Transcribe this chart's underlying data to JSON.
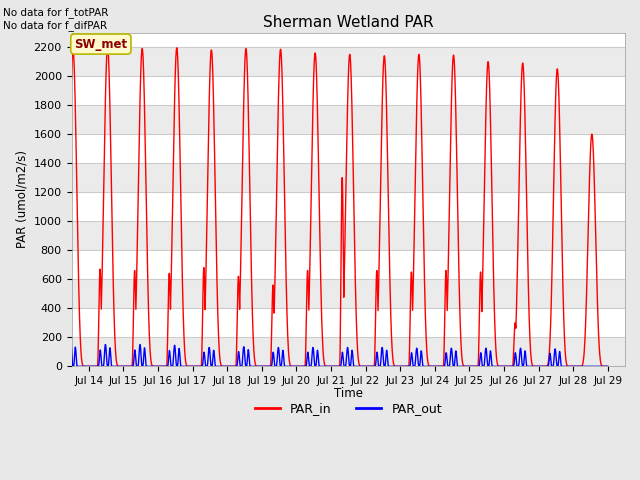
{
  "title": "Sherman Wetland PAR",
  "ylabel": "PAR (umol/m2/s)",
  "xlabel": "Time",
  "top_left_text": "No data for f_totPAR\nNo data for f_difPAR",
  "legend_labels": [
    "PAR_in",
    "PAR_out"
  ],
  "station_label": "SW_met",
  "station_label_color": "#8B0000",
  "station_label_bg": "#FFFACD",
  "station_label_edge": "#B8B800",
  "x_tick_labels": [
    "Jul 14",
    "Jul 15",
    "Jul 16",
    "Jul 17",
    "Jul 18",
    "Jul 19",
    "Jul 20",
    "Jul 21",
    "Jul 22",
    "Jul 23",
    "Jul 24",
    "Jul 25",
    "Jul 26",
    "Jul 27",
    "Jul 28",
    "Jul 29"
  ],
  "ylim": [
    0,
    2300
  ],
  "y_ticks": [
    0,
    200,
    400,
    600,
    800,
    1000,
    1200,
    1400,
    1600,
    1800,
    2000,
    2200
  ],
  "n_days": 16,
  "background_color": "#e8e8e8",
  "plot_bg_color": "#ffffff",
  "grid_color": "#cccccc",
  "par_in_color": "red",
  "par_out_color": "blue",
  "line_width": 1.0,
  "par_in_peaks": [
    2180,
    2200,
    2190,
    2195,
    2180,
    2190,
    2185,
    2160,
    2150,
    2140,
    2150,
    2145,
    2100,
    2090,
    2050,
    1600
  ],
  "par_in_peaks2": [
    680,
    670,
    660,
    640,
    680,
    620,
    560,
    660,
    1300,
    660,
    650,
    660,
    650,
    300,
    0,
    0
  ],
  "par_out_peaks": [
    155,
    150,
    150,
    145,
    130,
    135,
    130,
    130,
    130,
    130,
    125,
    125,
    125,
    125,
    120,
    0
  ]
}
